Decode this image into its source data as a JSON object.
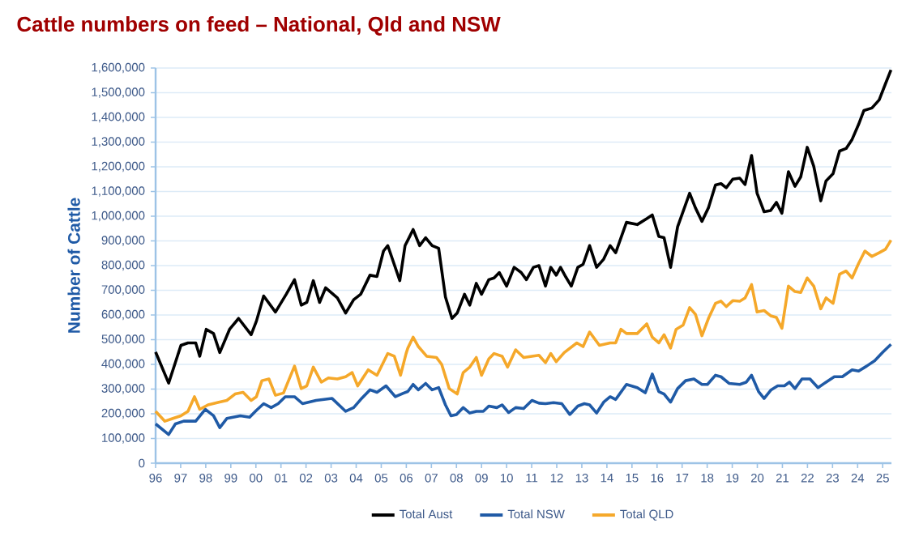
{
  "chart_data": {
    "type": "line",
    "title": "Cattle numbers on feed – National, Qld and NSW",
    "ylabel": "Number of Cattle",
    "xlim": [
      1996,
      2025.35
    ],
    "xticks": [
      {
        "value": 1996,
        "label": "96"
      },
      {
        "value": 1997,
        "label": "97"
      },
      {
        "value": 1998,
        "label": "98"
      },
      {
        "value": 1999,
        "label": "99"
      },
      {
        "value": 2000,
        "label": "00"
      },
      {
        "value": 2001,
        "label": "01"
      },
      {
        "value": 2002,
        "label": "02"
      },
      {
        "value": 2003,
        "label": "03"
      },
      {
        "value": 2004,
        "label": "04"
      },
      {
        "value": 2005,
        "label": "05"
      },
      {
        "value": 2006,
        "label": "06"
      },
      {
        "value": 2007,
        "label": "07"
      },
      {
        "value": 2008,
        "label": "08"
      },
      {
        "value": 2009,
        "label": "09"
      },
      {
        "value": 2010,
        "label": "10"
      },
      {
        "value": 2011,
        "label": "11"
      },
      {
        "value": 2012,
        "label": "12"
      },
      {
        "value": 2013,
        "label": "13"
      },
      {
        "value": 2014,
        "label": "14"
      },
      {
        "value": 2015,
        "label": "15"
      },
      {
        "value": 2016,
        "label": "16"
      },
      {
        "value": 2017,
        "label": "17"
      },
      {
        "value": 2018,
        "label": "18"
      },
      {
        "value": 2019,
        "label": "19"
      },
      {
        "value": 2020,
        "label": "20"
      },
      {
        "value": 2021,
        "label": "21"
      },
      {
        "value": 2022,
        "label": "22"
      },
      {
        "value": 2023,
        "label": "23"
      },
      {
        "value": 2024,
        "label": "24"
      },
      {
        "value": 2025,
        "label": "25"
      }
    ],
    "ylim": [
      0,
      1600000
    ],
    "yticks": [
      {
        "value": 0,
        "label": "0"
      },
      {
        "value": 100000,
        "label": "100,000"
      },
      {
        "value": 200000,
        "label": "200,000"
      },
      {
        "value": 300000,
        "label": "300,000"
      },
      {
        "value": 400000,
        "label": "400,000"
      },
      {
        "value": 500000,
        "label": "500,000"
      },
      {
        "value": 600000,
        "label": "600,000"
      },
      {
        "value": 700000,
        "label": "700,000"
      },
      {
        "value": 800000,
        "label": "800,000"
      },
      {
        "value": 900000,
        "label": "900,000"
      },
      {
        "value": 1000000,
        "label": "1,000,000"
      },
      {
        "value": 1100000,
        "label": "1,100,000"
      },
      {
        "value": 1200000,
        "label": "1,200,000"
      },
      {
        "value": 1300000,
        "label": "1,300,000"
      },
      {
        "value": 1400000,
        "label": "1,400,000"
      },
      {
        "value": 1500000,
        "label": "1,500,000"
      },
      {
        "value": 1600000,
        "label": "1,600,000"
      }
    ],
    "grid": "y",
    "legend": "bottom",
    "marker": "none",
    "line_style": "solid",
    "series": [
      {
        "name": "Total Aust",
        "color": "#000000",
        "x": [
          1996,
          1996.52,
          1997.01,
          1997.29,
          1997.6,
          1997.76,
          1998.02,
          1998.31,
          1998.56,
          1998.95,
          1999.31,
          1999.81,
          2000.02,
          2000.31,
          2000.78,
          2001.21,
          2001.54,
          2001.81,
          2002.03,
          2002.29,
          2002.54,
          2002.78,
          2003.25,
          2003.58,
          2003.9,
          2004.18,
          2004.55,
          2004.83,
          2005.09,
          2005.26,
          2005.74,
          2005.95,
          2006.06,
          2006.27,
          2006.53,
          2006.77,
          2007.03,
          2007.29,
          2007.56,
          2007.82,
          2008.03,
          2008.32,
          2008.53,
          2008.79,
          2009.0,
          2009.29,
          2009.5,
          2009.71,
          2010.0,
          2010.3,
          2010.58,
          2010.79,
          2011.07,
          2011.29,
          2011.55,
          2011.76,
          2011.98,
          2012.15,
          2012.36,
          2012.58,
          2012.84,
          2013.05,
          2013.31,
          2013.59,
          2013.87,
          2014.13,
          2014.35,
          2014.78,
          2015.21,
          2015.59,
          2015.81,
          2016.07,
          2016.28,
          2016.54,
          2016.82,
          2017.3,
          2017.53,
          2017.79,
          2018.05,
          2018.33,
          2018.55,
          2018.76,
          2019.02,
          2019.3,
          2019.51,
          2019.77,
          2019.99,
          2020.27,
          2020.53,
          2020.76,
          2020.98,
          2021.24,
          2021.5,
          2021.73,
          2021.99,
          2022.25,
          2022.53,
          2022.74,
          2023.02,
          2023.28,
          2023.54,
          2023.78,
          2024.04,
          2024.25,
          2024.57,
          2024.86,
          2025.11,
          2025.33
        ],
        "values": [
          450000,
          324000,
          477000,
          487000,
          487000,
          433000,
          542000,
          525000,
          448000,
          542000,
          586000,
          520000,
          575000,
          677000,
          612000,
          684000,
          743000,
          640000,
          651000,
          739000,
          651000,
          710000,
          669000,
          608000,
          662000,
          684000,
          761000,
          756000,
          859000,
          881000,
          739000,
          881000,
          903000,
          946000,
          881000,
          913000,
          881000,
          870000,
          673000,
          586000,
          608000,
          684000,
          640000,
          728000,
          684000,
          743000,
          750000,
          772000,
          717000,
          793000,
          772000,
          743000,
          793000,
          800000,
          717000,
          793000,
          761000,
          793000,
          754000,
          717000,
          793000,
          805000,
          881000,
          793000,
          826000,
          881000,
          852000,
          975000,
          966000,
          990000,
          1005000,
          918000,
          913000,
          793000,
          957000,
          1093000,
          1034000,
          979000,
          1034000,
          1126000,
          1132000,
          1115000,
          1150000,
          1154000,
          1128000,
          1246000,
          1093000,
          1018000,
          1023000,
          1056000,
          1012000,
          1180000,
          1121000,
          1159000,
          1279000,
          1202000,
          1062000,
          1143000,
          1172000,
          1264000,
          1274000,
          1311000,
          1372000,
          1428000,
          1438000,
          1471000,
          1536000,
          1592000
        ]
      },
      {
        "name": "Total NSW",
        "color": "#1f5aa6",
        "x": [
          1996,
          1996.52,
          1996.79,
          1997.12,
          1997.6,
          1997.98,
          1998.31,
          1998.56,
          1998.84,
          1999.38,
          1999.75,
          2000.02,
          2000.31,
          2000.61,
          2000.89,
          2001.17,
          2001.54,
          2001.86,
          2002.4,
          2003.04,
          2003.58,
          2003.9,
          2004.18,
          2004.55,
          2004.83,
          2005.19,
          2005.56,
          2005.9,
          2006.06,
          2006.27,
          2006.48,
          2006.77,
          2007.03,
          2007.29,
          2007.56,
          2007.78,
          2008.0,
          2008.27,
          2008.53,
          2008.79,
          2009.07,
          2009.29,
          2009.61,
          2009.82,
          2010.08,
          2010.36,
          2010.68,
          2011.01,
          2011.29,
          2011.55,
          2011.87,
          2012.2,
          2012.52,
          2012.84,
          2013.1,
          2013.31,
          2013.59,
          2013.87,
          2014.13,
          2014.35,
          2014.78,
          2015.21,
          2015.53,
          2015.81,
          2016.07,
          2016.28,
          2016.54,
          2016.82,
          2017.14,
          2017.47,
          2017.79,
          2018.01,
          2018.33,
          2018.55,
          2018.87,
          2019.3,
          2019.56,
          2019.77,
          2020.05,
          2020.27,
          2020.55,
          2020.81,
          2021.08,
          2021.28,
          2021.5,
          2021.78,
          2022.1,
          2022.42,
          2022.74,
          2023.07,
          2023.39,
          2023.78,
          2024.04,
          2024.36,
          2024.68,
          2025.01,
          2025.33
        ],
        "values": [
          159000,
          116000,
          159000,
          170000,
          170000,
          218000,
          192000,
          144000,
          181000,
          192000,
          186000,
          214000,
          241000,
          225000,
          241000,
          269000,
          269000,
          241000,
          254000,
          262000,
          210000,
          225000,
          258000,
          297000,
          287000,
          313000,
          269000,
          284000,
          290000,
          319000,
          297000,
          323000,
          297000,
          306000,
          236000,
          192000,
          197000,
          225000,
          203000,
          210000,
          210000,
          231000,
          225000,
          236000,
          205000,
          225000,
          221000,
          254000,
          243000,
          241000,
          245000,
          241000,
          197000,
          231000,
          241000,
          236000,
          203000,
          247000,
          269000,
          258000,
          319000,
          306000,
          285000,
          361000,
          290000,
          280000,
          247000,
          302000,
          334000,
          341000,
          319000,
          319000,
          356000,
          350000,
          323000,
          319000,
          328000,
          356000,
          290000,
          262000,
          297000,
          313000,
          313000,
          328000,
          302000,
          341000,
          341000,
          306000,
          328000,
          350000,
          350000,
          378000,
          373000,
          393000,
          415000,
          450000,
          481000
        ]
      },
      {
        "name": "Total QLD",
        "color": "#f5a82a",
        "x": [
          1996,
          1996.37,
          1996.69,
          1997.01,
          1997.29,
          1997.55,
          1997.76,
          1998.09,
          1998.52,
          1998.84,
          1999.17,
          1999.49,
          1999.81,
          2000.02,
          2000.24,
          2000.52,
          2000.78,
          2001.1,
          2001.54,
          2001.81,
          2002.03,
          2002.29,
          2002.61,
          2002.89,
          2003.25,
          2003.58,
          2003.84,
          2004.06,
          2004.48,
          2004.83,
          2005.26,
          2005.52,
          2005.77,
          2005.99,
          2006.06,
          2006.27,
          2006.48,
          2006.81,
          2007.2,
          2007.41,
          2007.71,
          2008.03,
          2008.27,
          2008.53,
          2008.79,
          2009.0,
          2009.29,
          2009.5,
          2009.82,
          2010.04,
          2010.36,
          2010.68,
          2011.01,
          2011.29,
          2011.55,
          2011.76,
          2011.98,
          2012.3,
          2012.8,
          2013.05,
          2013.31,
          2013.7,
          2014.13,
          2014.35,
          2014.56,
          2014.78,
          2015.21,
          2015.59,
          2015.81,
          2016.07,
          2016.28,
          2016.54,
          2016.76,
          2017.04,
          2017.3,
          2017.53,
          2017.79,
          2018.05,
          2018.33,
          2018.55,
          2018.76,
          2019.02,
          2019.3,
          2019.51,
          2019.77,
          2019.99,
          2020.27,
          2020.53,
          2020.76,
          2020.98,
          2021.24,
          2021.5,
          2021.73,
          2021.99,
          2022.25,
          2022.53,
          2022.74,
          2023.02,
          2023.28,
          2023.54,
          2023.78,
          2024.04,
          2024.29,
          2024.57,
          2024.86,
          2025.11,
          2025.33
        ],
        "values": [
          210000,
          170000,
          181000,
          192000,
          210000,
          269000,
          218000,
          236000,
          247000,
          254000,
          280000,
          287000,
          254000,
          269000,
          334000,
          341000,
          275000,
          284000,
          393000,
          302000,
          313000,
          389000,
          328000,
          345000,
          341000,
          350000,
          367000,
          313000,
          378000,
          356000,
          444000,
          433000,
          356000,
          444000,
          466000,
          510000,
          472000,
          433000,
          428000,
          400000,
          302000,
          280000,
          367000,
          389000,
          428000,
          356000,
          422000,
          444000,
          433000,
          389000,
          459000,
          428000,
          433000,
          437000,
          407000,
          444000,
          411000,
          448000,
          487000,
          472000,
          531000,
          477000,
          487000,
          487000,
          542000,
          525000,
          525000,
          564000,
          510000,
          487000,
          520000,
          466000,
          542000,
          559000,
          630000,
          603000,
          516000,
          586000,
          647000,
          656000,
          634000,
          658000,
          656000,
          669000,
          723000,
          612000,
          618000,
          597000,
          590000,
          546000,
          717000,
          695000,
          691000,
          750000,
          717000,
          625000,
          669000,
          647000,
          765000,
          778000,
          750000,
          809000,
          859000,
          837000,
          852000,
          866000,
          903000
        ]
      }
    ]
  }
}
